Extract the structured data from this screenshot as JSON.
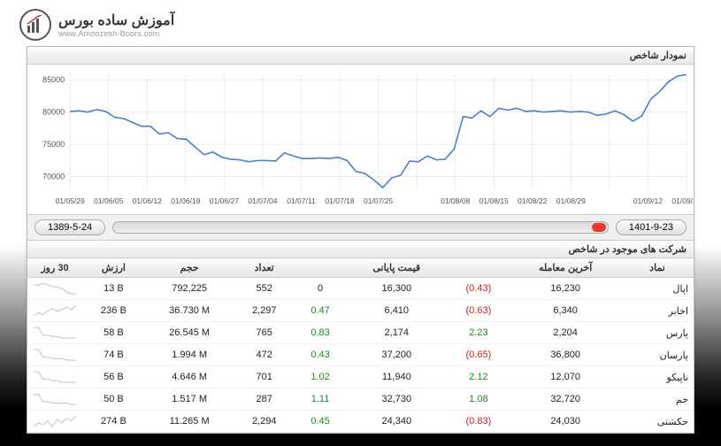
{
  "logo": {
    "fa": "آموزش ساده بورس",
    "en": "www.Amoozesh-Boors.com"
  },
  "chart_section": {
    "title": "نمودار شاخص",
    "y_axis": {
      "min": 68000,
      "max": 86000,
      "ticks": [
        70000,
        75000,
        80000,
        85000
      ]
    },
    "x_labels": [
      "01/05/29",
      "01/06/05",
      "01/06/12",
      "01/06/19",
      "01/06/27",
      "01/07/04",
      "01/07/11",
      "01/07/18",
      "01/07/25",
      "",
      "01/08/08",
      "01/08/15",
      "01/08/22",
      "01/08/29",
      "",
      "01/09/12",
      "01/09/19"
    ],
    "line_color": "#4a7fc9",
    "grid_color": "#d9d9d9",
    "bg_color": "#ffffff",
    "series": [
      80100,
      80200,
      80000,
      80400,
      80100,
      79200,
      79000,
      78400,
      77800,
      77800,
      76600,
      76800,
      75900,
      75800,
      74600,
      73400,
      73800,
      73000,
      72700,
      72600,
      72300,
      72500,
      72500,
      72400,
      73700,
      73200,
      72800,
      72800,
      72900,
      72800,
      73000,
      72500,
      70800,
      70500,
      69500,
      68300,
      69800,
      70200,
      72400,
      72300,
      73200,
      72600,
      72700,
      74300,
      79300,
      79100,
      80200,
      79300,
      80600,
      80300,
      80600,
      80100,
      80200,
      80000,
      80100,
      80200,
      80000,
      80100,
      80000,
      79500,
      79700,
      80200,
      79600,
      78600,
      79400,
      82000,
      83200,
      84700,
      85600,
      85800
    ]
  },
  "slider": {
    "start_date": "1389-5-24",
    "end_date": "1401-9-23",
    "thumb_color": "#e63a2f"
  },
  "table_section": {
    "title": "شرکت های موجود در شاخص",
    "columns": [
      "نماد",
      "آخرین معامله",
      "",
      "قیمت پایانی",
      "",
      "تعداد",
      "حجم",
      "ارزش",
      "30 روز"
    ],
    "rows": [
      {
        "sym": "اپال",
        "last": "16,230",
        "last_chg": "(0.43)",
        "last_dir": "neg",
        "close": "16,300",
        "close_chg": "0",
        "close_dir": "",
        "count": "552",
        "vol": "792,225",
        "val": "13 B",
        "spark": [
          10,
          10,
          11,
          10,
          9,
          9,
          8,
          6,
          5,
          5
        ]
      },
      {
        "sym": "اخابر",
        "last": "6,340",
        "last_chg": "(0.63)",
        "last_dir": "neg",
        "close": "6,410",
        "close_chg": "0.47",
        "close_dir": "pos",
        "count": "2,297",
        "vol": "36.730 M",
        "val": "236 B",
        "spark": [
          4,
          6,
          5,
          7,
          9,
          7,
          8,
          10,
          8,
          11
        ]
      },
      {
        "sym": "پارس",
        "last": "2,204",
        "last_chg": "2.23",
        "last_dir": "pos",
        "close": "2,174",
        "close_chg": "0.83",
        "close_dir": "pos",
        "count": "765",
        "vol": "26.545 M",
        "val": "58 B",
        "spark": [
          12,
          12,
          7,
          7,
          6,
          6,
          5,
          5,
          5,
          5
        ]
      },
      {
        "sym": "پارسان",
        "last": "36,800",
        "last_chg": "(0.65)",
        "last_dir": "neg",
        "close": "37,200",
        "close_chg": "0.43",
        "close_dir": "pos",
        "count": "472",
        "vol": "1.994 M",
        "val": "74 B",
        "spark": [
          11,
          11,
          6,
          6,
          5,
          5,
          5,
          4,
          4,
          4
        ]
      },
      {
        "sym": "تاپیکو",
        "last": "12,070",
        "last_chg": "2.12",
        "last_dir": "pos",
        "close": "11,940",
        "close_chg": "1.02",
        "close_dir": "pos",
        "count": "701",
        "vol": "4.646 M",
        "val": "56 B",
        "spark": [
          12,
          12,
          7,
          7,
          6,
          6,
          5,
          5,
          5,
          5
        ]
      },
      {
        "sym": "جم",
        "last": "32,720",
        "last_chg": "1.08",
        "last_dir": "pos",
        "close": "32,730",
        "close_chg": "1.11",
        "close_dir": "pos",
        "count": "287",
        "vol": "1.517 M",
        "val": "50 B",
        "spark": [
          11,
          12,
          6,
          6,
          5,
          5,
          5,
          5,
          4,
          4
        ]
      },
      {
        "sym": "حکشتی",
        "last": "24,030",
        "last_chg": "(0.83)",
        "last_dir": "neg",
        "close": "24,340",
        "close_chg": "0.45",
        "close_dir": "pos",
        "count": "2,294",
        "vol": "11.265 M",
        "val": "274 B",
        "spark": [
          5,
          7,
          6,
          8,
          5,
          9,
          7,
          10,
          8,
          11
        ]
      }
    ]
  },
  "colors": {
    "neg": "#c62020",
    "pos": "#1a8a1a",
    "text": "#222222"
  }
}
